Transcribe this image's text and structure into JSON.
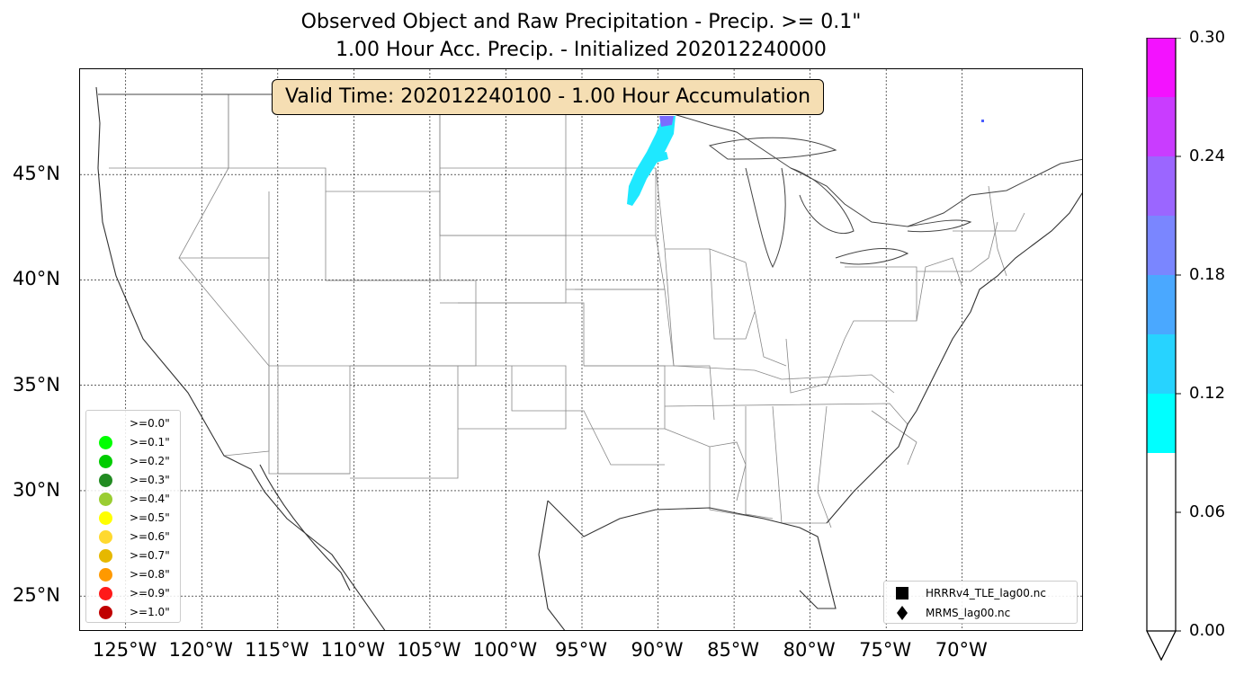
{
  "title": {
    "line1": "Observed Object and Raw Precipitation - Precip. >= 0.1\"",
    "line2": "1.00 Hour Acc. Precip. - Initialized 202012240000"
  },
  "valid_time_box": "Valid Time: 202012240100 - 1.00 Hour Accumulation",
  "map": {
    "lon_range": [
      -128,
      -62
    ],
    "lat_range": [
      23.3,
      50.0
    ],
    "lat_ticks": [
      {
        "value": 45,
        "label": "45°N"
      },
      {
        "value": 40,
        "label": "40°N"
      },
      {
        "value": 35,
        "label": "35°N"
      },
      {
        "value": 30,
        "label": "30°N"
      },
      {
        "value": 25,
        "label": "25°N"
      }
    ],
    "lon_ticks": [
      {
        "value": -125,
        "label": "125°W"
      },
      {
        "value": -120,
        "label": "120°W"
      },
      {
        "value": -115,
        "label": "115°W"
      },
      {
        "value": -110,
        "label": "110°W"
      },
      {
        "value": -105,
        "label": "105°W"
      },
      {
        "value": -100,
        "label": "100°W"
      },
      {
        "value": -95,
        "label": "95°W"
      },
      {
        "value": -90,
        "label": "90°W"
      },
      {
        "value": -85,
        "label": "85°W"
      },
      {
        "value": -80,
        "label": "80°W"
      },
      {
        "value": -75,
        "label": "75°W"
      },
      {
        "value": -70,
        "label": "70°W"
      }
    ],
    "grid": "dotted",
    "precip_band_color": "#1ee8ff",
    "precip_peak_color": "#7a6cff"
  },
  "threshold_legend": [
    {
      "label": ">=0.0\"",
      "color": "#ffffff"
    },
    {
      "label": ">=0.1\"",
      "color": "#00ff00"
    },
    {
      "label": ">=0.2\"",
      "color": "#00cc00"
    },
    {
      "label": ">=0.3\"",
      "color": "#228b22"
    },
    {
      "label": ">=0.4\"",
      "color": "#9acd32"
    },
    {
      "label": ">=0.5\"",
      "color": "#ffff00"
    },
    {
      "label": ">=0.6\"",
      "color": "#ffd92f"
    },
    {
      "label": ">=0.7\"",
      "color": "#e6b800"
    },
    {
      "label": ">=0.8\"",
      "color": "#ff9900"
    },
    {
      "label": ">=0.9\"",
      "color": "#ff1a1a"
    },
    {
      "label": ">=1.0\"",
      "color": "#c00000"
    }
  ],
  "source_legend": [
    {
      "label": "HRRRv4_TLE_lag00.nc",
      "marker": "square-icon"
    },
    {
      "label": "MRMS_lag00.nc",
      "marker": "diamond-icon"
    }
  ],
  "colorbar": {
    "min": 0.0,
    "max": 0.3,
    "extend": "min",
    "ticks": [
      {
        "value": 0.3,
        "label": "0.30"
      },
      {
        "value": 0.24,
        "label": "0.24"
      },
      {
        "value": 0.18,
        "label": "0.18"
      },
      {
        "value": 0.12,
        "label": "0.12"
      },
      {
        "value": 0.06,
        "label": "0.06"
      },
      {
        "value": 0.0,
        "label": "0.00"
      }
    ],
    "segments": [
      {
        "from": 0.0,
        "to": 0.09,
        "color": "#ffffff"
      },
      {
        "from": 0.09,
        "to": 0.12,
        "color": "#00ffff"
      },
      {
        "from": 0.12,
        "to": 0.15,
        "color": "#27d3ff"
      },
      {
        "from": 0.15,
        "to": 0.18,
        "color": "#4aa8ff"
      },
      {
        "from": 0.18,
        "to": 0.21,
        "color": "#7a86ff"
      },
      {
        "from": 0.21,
        "to": 0.24,
        "color": "#9b66ff"
      },
      {
        "from": 0.24,
        "to": 0.27,
        "color": "#c93cff"
      },
      {
        "from": 0.27,
        "to": 0.3,
        "color": "#f312ff"
      }
    ]
  }
}
